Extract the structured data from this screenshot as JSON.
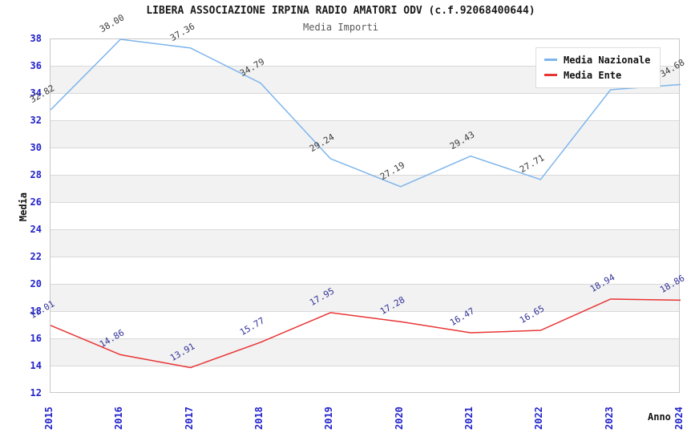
{
  "chart_data": {
    "type": "line",
    "title": "LIBERA ASSOCIAZIONE IRPINA RADIO AMATORI ODV (c.f.92068400644)",
    "subtitle": "Media Importi",
    "xlabel": "Anno",
    "ylabel": "Media",
    "categories": [
      "2015",
      "2016",
      "2017",
      "2018",
      "2019",
      "2020",
      "2021",
      "2022",
      "2023",
      "2024"
    ],
    "series": [
      {
        "name": "Media Nazionale",
        "color": "#7cb5ec",
        "label_color": "#3c3c3c",
        "values": [
          32.82,
          38.0,
          37.36,
          34.79,
          29.24,
          27.19,
          29.43,
          27.71,
          34.3,
          34.68
        ]
      },
      {
        "name": "Media Ente",
        "color": "#e93434",
        "label_color": "#333399",
        "values": [
          17.01,
          14.86,
          13.91,
          15.77,
          17.95,
          17.28,
          16.47,
          16.65,
          18.94,
          18.86
        ]
      }
    ],
    "ylim": [
      12,
      38
    ],
    "y_tick_step": 2,
    "grid": "horizontal-bands",
    "legend_position": "top-right",
    "tick_color": "#2222cc"
  }
}
